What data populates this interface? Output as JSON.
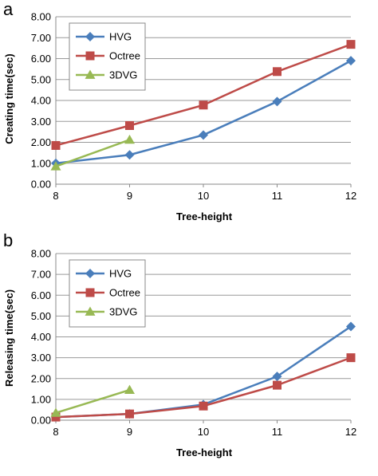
{
  "chart_data": [
    {
      "panel": "a",
      "type": "line",
      "xlabel": "Tree-height",
      "ylabel": "Creating time(sec)",
      "x": [
        8,
        9,
        10,
        11,
        12
      ],
      "xlim": [
        8,
        12
      ],
      "ylim": [
        0,
        8
      ],
      "yticks": [
        "0.00",
        "1.00",
        "2.00",
        "3.00",
        "4.00",
        "5.00",
        "6.00",
        "7.00",
        "8.00"
      ],
      "grid": true,
      "legend_position": "top-left",
      "series": [
        {
          "name": "HVG",
          "x": [
            8,
            9,
            10,
            11,
            12
          ],
          "values": [
            1.0,
            1.4,
            2.35,
            3.95,
            5.9
          ],
          "color": "#4a7ebb",
          "marker": "diamond"
        },
        {
          "name": "Octree",
          "x": [
            8,
            9,
            10,
            11,
            12
          ],
          "values": [
            1.85,
            2.8,
            3.78,
            5.38,
            6.68
          ],
          "color": "#be4b48",
          "marker": "square"
        },
        {
          "name": "3DVG",
          "x": [
            8,
            9
          ],
          "values": [
            0.85,
            2.12
          ],
          "color": "#98b954",
          "marker": "triangle"
        }
      ]
    },
    {
      "panel": "b",
      "type": "line",
      "xlabel": "Tree-height",
      "ylabel": "Releasing time(sec)",
      "x": [
        8,
        9,
        10,
        11,
        12
      ],
      "xlim": [
        8,
        12
      ],
      "ylim": [
        0,
        8
      ],
      "yticks": [
        "0.00",
        "1.00",
        "2.00",
        "3.00",
        "4.00",
        "5.00",
        "6.00",
        "7.00",
        "8.00"
      ],
      "grid": true,
      "legend_position": "top-left",
      "series": [
        {
          "name": "HVG",
          "x": [
            8,
            9,
            10,
            11,
            12
          ],
          "values": [
            0.15,
            0.3,
            0.75,
            2.1,
            4.5
          ],
          "color": "#4a7ebb",
          "marker": "diamond"
        },
        {
          "name": "Octree",
          "x": [
            8,
            9,
            10,
            11,
            12
          ],
          "values": [
            0.15,
            0.3,
            0.68,
            1.68,
            3.0
          ],
          "color": "#be4b48",
          "marker": "square"
        },
        {
          "name": "3DVG",
          "x": [
            8,
            9
          ],
          "values": [
            0.35,
            1.45
          ],
          "color": "#98b954",
          "marker": "triangle"
        }
      ]
    }
  ]
}
